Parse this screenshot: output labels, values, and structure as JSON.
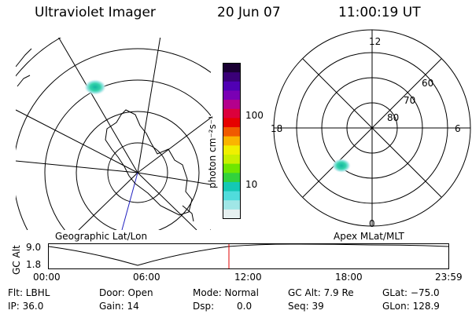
{
  "header": {
    "instrument": "Ultraviolet Imager",
    "date": "20 Jun 07",
    "time": "11:00:19 UT"
  },
  "colorbar": {
    "unit_label": "photon cm⁻²s⁻¹",
    "ticks": [
      "100",
      "10"
    ],
    "colors": [
      "#1a0033",
      "#3a0078",
      "#5000b4",
      "#7a00b4",
      "#b4008c",
      "#dc003c",
      "#e60000",
      "#f05a00",
      "#fab400",
      "#f0f000",
      "#c8f000",
      "#6ee600",
      "#32d23c",
      "#14c8b4",
      "#50dcdc",
      "#a0e6e6",
      "#e6f0f0"
    ]
  },
  "left_panel": {
    "label": "Geographic Lat/Lon"
  },
  "right_panel": {
    "label": "Apex MLat/MLT",
    "mlt_labels": {
      "top": "12",
      "left": "18",
      "right": "6",
      "bottom": "0"
    },
    "lat_labels": [
      "60",
      "70",
      "80"
    ]
  },
  "timeline": {
    "ylabel": "GC Alt",
    "yticks": [
      "9.0",
      "1.8"
    ],
    "xticks": [
      "00:00",
      "06:00",
      "12:00",
      "18:00",
      "23:59"
    ]
  },
  "info": {
    "filter": "Flt: LBHL",
    "ip": "IP: 36.0",
    "door": "Door: Open",
    "gain": "Gain: 14",
    "mode": "Mode: Normal",
    "dsp_label": "Dsp:",
    "dsp_value": "0.0",
    "gc_alt": "GC Alt: 7.9 Re",
    "seq": "Seq: 39",
    "glat": "GLat: −75.0",
    "glon": "GLon: 128.9"
  }
}
